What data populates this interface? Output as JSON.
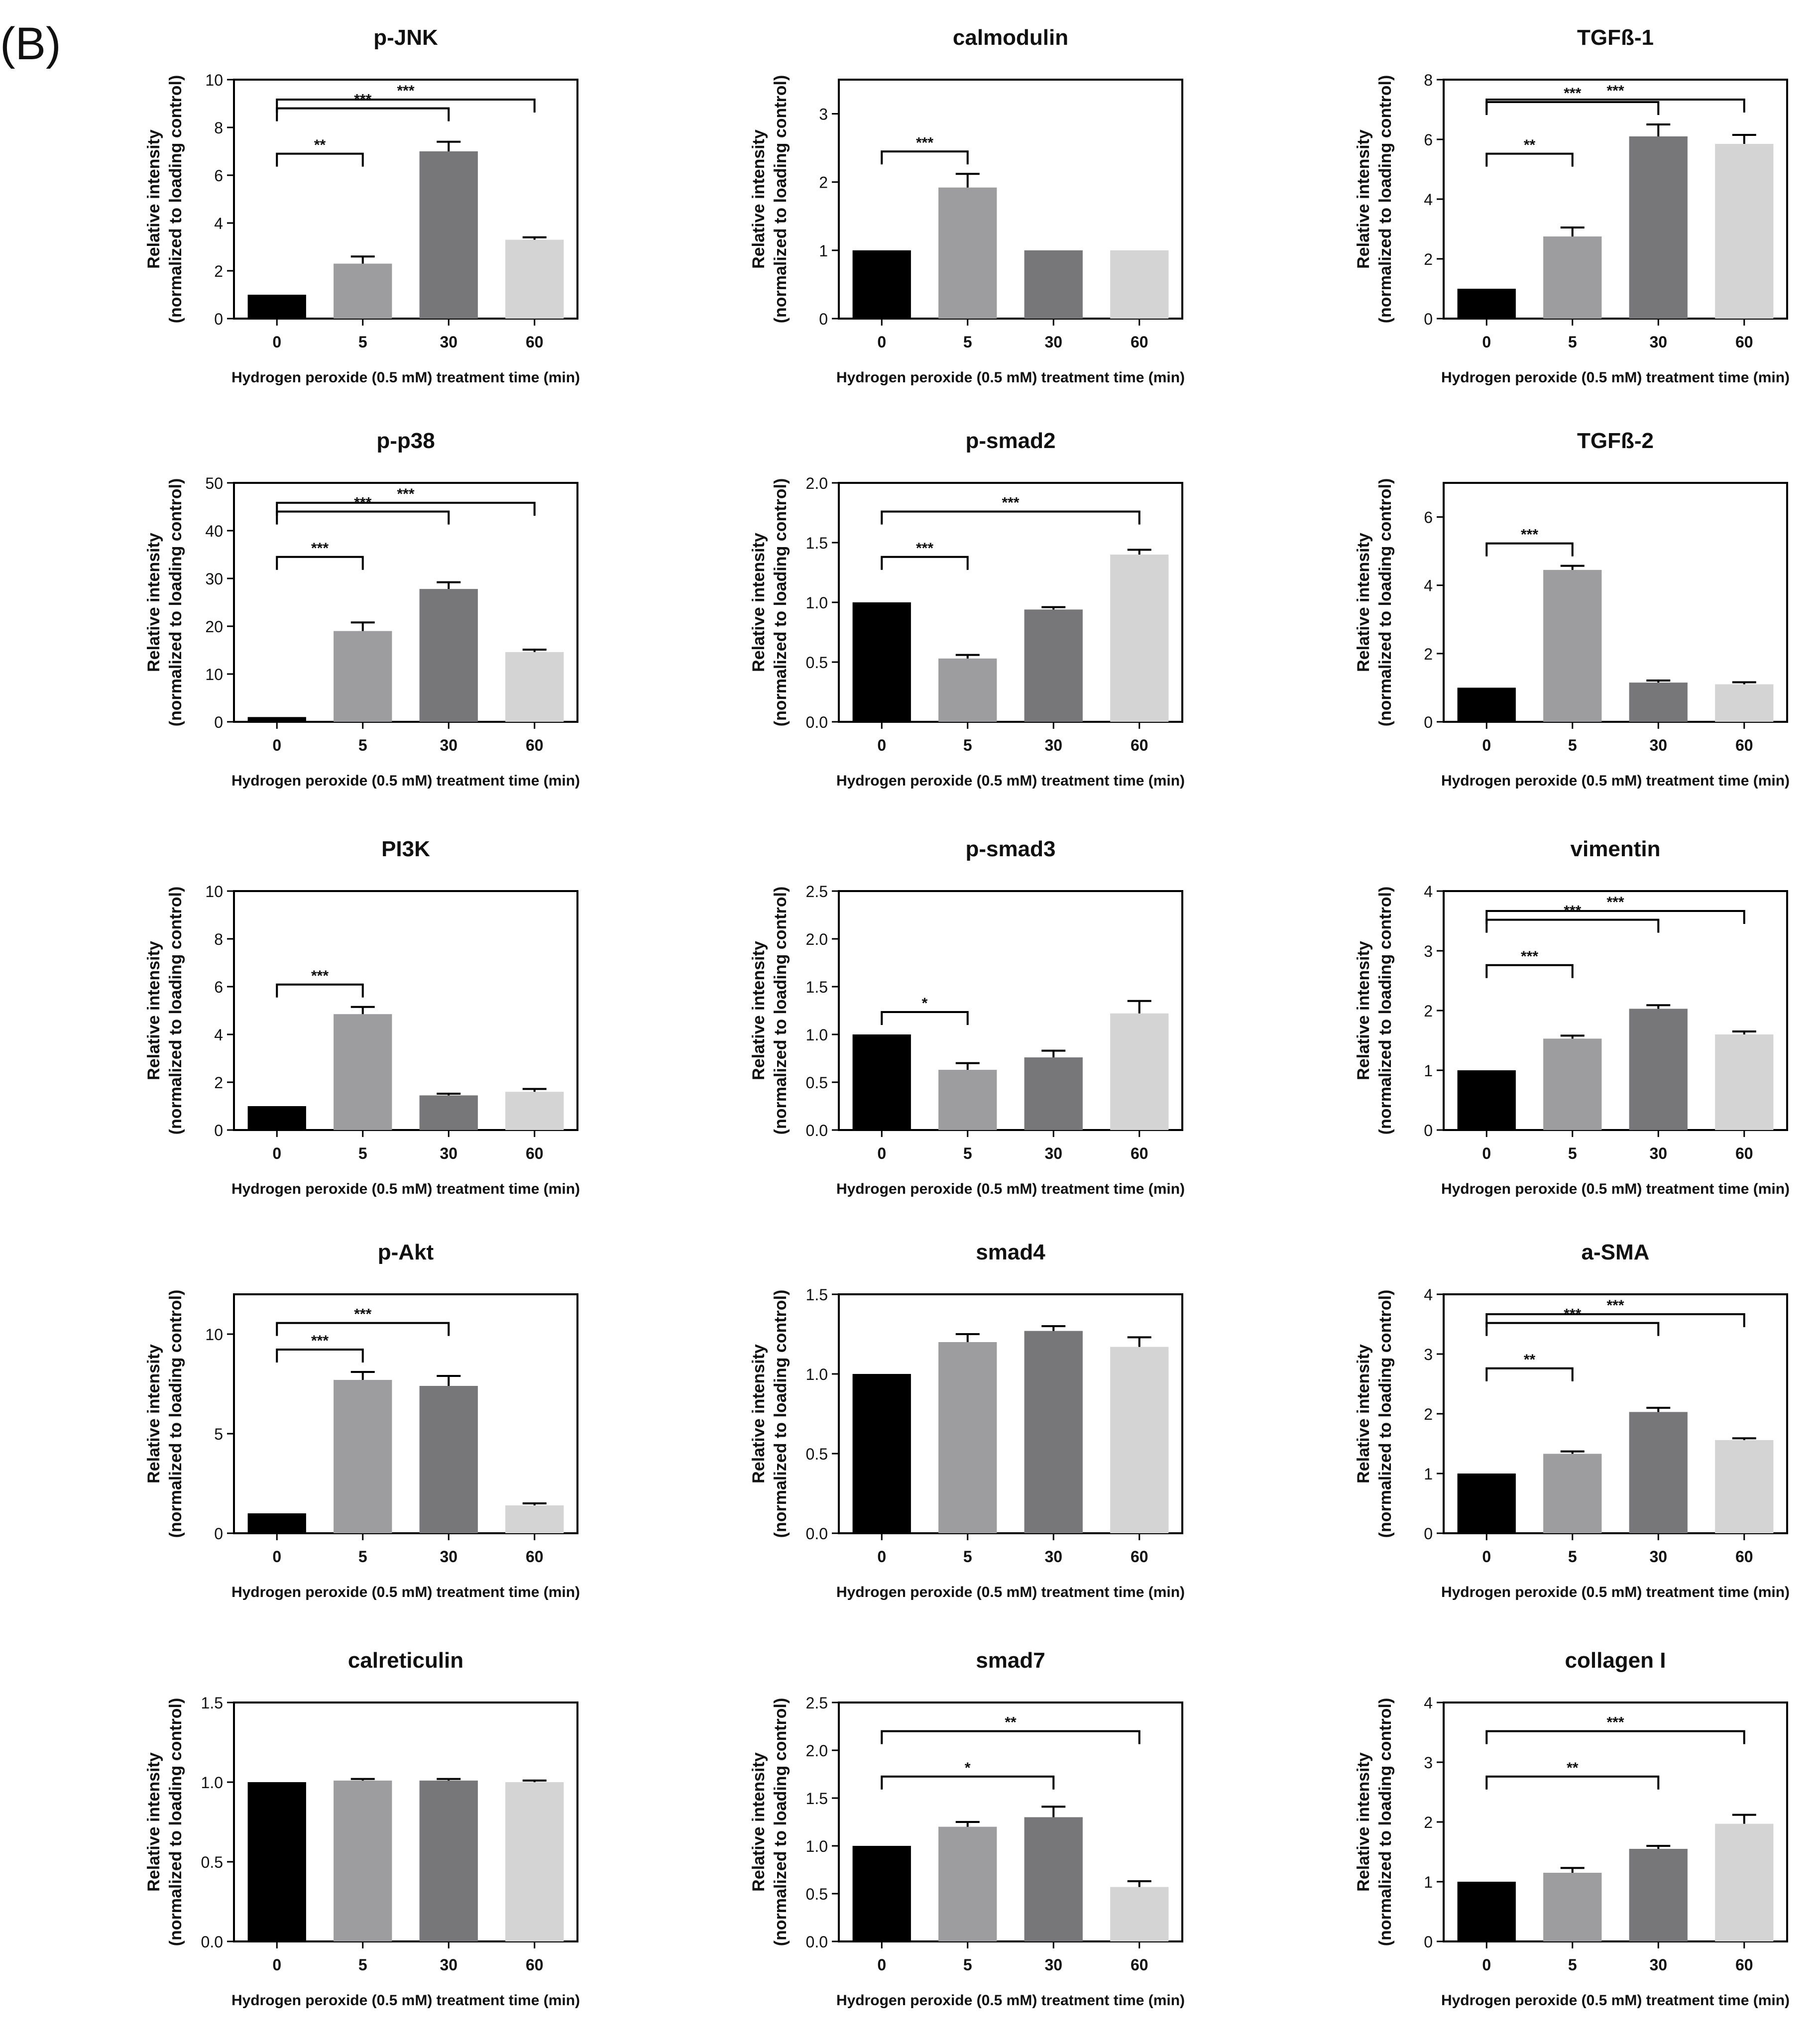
{
  "figure": {
    "panel_label": "(B)",
    "x_axis_label": "Hydrogen peroxide (0.5 mM) treatment time (min)",
    "y_axis_label_line1": "Relative intensity",
    "y_axis_label_line2": "(normalized to loading control)",
    "bar_colors": [
      "#000000",
      "#9d9d9f",
      "#77777a",
      "#d4d4d5"
    ]
  },
  "chart_data": [
    {
      "type": "bar",
      "title": "p-JNK",
      "categories": [
        "0",
        "5",
        "30",
        "60"
      ],
      "values": [
        1.0,
        2.3,
        7.0,
        3.3
      ],
      "errors": [
        0,
        0.3,
        0.4,
        0.1
      ],
      "ylim": [
        0,
        10
      ],
      "yticks": [
        "0",
        "2",
        "4",
        "6",
        "8",
        "10"
      ],
      "significance": [
        {
          "from": 0,
          "to": 1,
          "label": "**"
        },
        {
          "from": 0,
          "to": 2,
          "label": "***"
        },
        {
          "from": 0,
          "to": 3,
          "label": "***"
        }
      ]
    },
    {
      "type": "bar",
      "title": "calmodulin",
      "categories": [
        "0",
        "5",
        "30",
        "60"
      ],
      "values": [
        1.0,
        1.92,
        1.0,
        1.0
      ],
      "errors": [
        0,
        0.2,
        0,
        0
      ],
      "ylim": [
        0,
        3.5
      ],
      "yticks": [
        "0",
        "1",
        "2",
        "3"
      ],
      "significance": [
        {
          "from": 0,
          "to": 1,
          "label": "***"
        }
      ]
    },
    {
      "type": "bar",
      "title": "TGFß-1",
      "categories": [
        "0",
        "5",
        "30",
        "60"
      ],
      "values": [
        1.0,
        2.75,
        6.1,
        5.85
      ],
      "errors": [
        0,
        0.3,
        0.4,
        0.3
      ],
      "ylim": [
        0,
        8
      ],
      "yticks": [
        "0",
        "2",
        "4",
        "6",
        "8"
      ],
      "significance": [
        {
          "from": 0,
          "to": 1,
          "label": "**"
        },
        {
          "from": 0,
          "to": 2,
          "label": "***"
        },
        {
          "from": 0,
          "to": 3,
          "label": "***"
        }
      ]
    },
    {
      "type": "bar",
      "title": "p-p38",
      "categories": [
        "0",
        "5",
        "30",
        "60"
      ],
      "values": [
        1.0,
        19.0,
        27.8,
        14.6
      ],
      "errors": [
        0,
        1.8,
        1.4,
        0.5
      ],
      "ylim": [
        0,
        50
      ],
      "yticks": [
        "0",
        "10",
        "20",
        "30",
        "40",
        "50"
      ],
      "significance": [
        {
          "from": 0,
          "to": 1,
          "label": "***"
        },
        {
          "from": 0,
          "to": 2,
          "label": "***"
        },
        {
          "from": 0,
          "to": 3,
          "label": "***"
        }
      ]
    },
    {
      "type": "bar",
      "title": "p-smad2",
      "categories": [
        "0",
        "5",
        "30",
        "60"
      ],
      "values": [
        1.0,
        0.53,
        0.94,
        1.4
      ],
      "errors": [
        0,
        0.03,
        0.02,
        0.04
      ],
      "ylim": [
        0,
        2.0
      ],
      "yticks": [
        "0.0",
        "0.5",
        "1.0",
        "1.5",
        "2.0"
      ],
      "significance": [
        {
          "from": 0,
          "to": 1,
          "label": "***"
        },
        {
          "from": 0,
          "to": 3,
          "label": "***"
        }
      ]
    },
    {
      "type": "bar",
      "title": "TGFß-2",
      "categories": [
        "0",
        "5",
        "30",
        "60"
      ],
      "values": [
        1.0,
        4.45,
        1.15,
        1.1
      ],
      "errors": [
        0,
        0.12,
        0.06,
        0.06
      ],
      "ylim": [
        0,
        7
      ],
      "yticks": [
        "0",
        "2",
        "4",
        "6"
      ],
      "significance": [
        {
          "from": 0,
          "to": 1,
          "label": "***"
        }
      ]
    },
    {
      "type": "bar",
      "title": "PI3K",
      "categories": [
        "0",
        "5",
        "30",
        "60"
      ],
      "values": [
        1.0,
        4.85,
        1.45,
        1.6
      ],
      "errors": [
        0,
        0.3,
        0.07,
        0.12
      ],
      "ylim": [
        0,
        10
      ],
      "yticks": [
        "0",
        "2",
        "4",
        "6",
        "8",
        "10"
      ],
      "significance": [
        {
          "from": 0,
          "to": 1,
          "label": "***"
        }
      ]
    },
    {
      "type": "bar",
      "title": "p-smad3",
      "categories": [
        "0",
        "5",
        "30",
        "60"
      ],
      "values": [
        1.0,
        0.63,
        0.76,
        1.22
      ],
      "errors": [
        0,
        0.07,
        0.07,
        0.13
      ],
      "ylim": [
        0,
        2.5
      ],
      "yticks": [
        "0.0",
        "0.5",
        "1.0",
        "1.5",
        "2.0",
        "2.5"
      ],
      "significance": [
        {
          "from": 0,
          "to": 1,
          "label": "*"
        }
      ]
    },
    {
      "type": "bar",
      "title": "vimentin",
      "categories": [
        "0",
        "5",
        "30",
        "60"
      ],
      "values": [
        1.0,
        1.53,
        2.03,
        1.6
      ],
      "errors": [
        0,
        0.05,
        0.06,
        0.05
      ],
      "ylim": [
        0,
        4
      ],
      "yticks": [
        "0",
        "1",
        "2",
        "3",
        "4"
      ],
      "significance": [
        {
          "from": 0,
          "to": 1,
          "label": "***"
        },
        {
          "from": 0,
          "to": 2,
          "label": "***"
        },
        {
          "from": 0,
          "to": 3,
          "label": "***"
        }
      ]
    },
    {
      "type": "bar",
      "title": "p-Akt",
      "categories": [
        "0",
        "5",
        "30",
        "60"
      ],
      "values": [
        1.0,
        7.7,
        7.4,
        1.4
      ],
      "errors": [
        0,
        0.4,
        0.5,
        0.1
      ],
      "ylim": [
        0,
        12
      ],
      "yticks": [
        "0",
        "5",
        "10"
      ],
      "yticks_at": [
        0,
        5,
        10
      ],
      "significance": [
        {
          "from": 0,
          "to": 1,
          "label": "***"
        },
        {
          "from": 0,
          "to": 2,
          "label": "***"
        }
      ]
    },
    {
      "type": "bar",
      "title": "smad4",
      "categories": [
        "0",
        "5",
        "30",
        "60"
      ],
      "values": [
        1.0,
        1.2,
        1.27,
        1.17
      ],
      "errors": [
        0,
        0.05,
        0.03,
        0.06
      ],
      "ylim": [
        0,
        1.5
      ],
      "yticks": [
        "0.0",
        "0.5",
        "1.0",
        "1.5"
      ],
      "significance": []
    },
    {
      "type": "bar",
      "title": "a-SMA",
      "categories": [
        "0",
        "5",
        "30",
        "60"
      ],
      "values": [
        1.0,
        1.33,
        2.03,
        1.56
      ],
      "errors": [
        0,
        0.04,
        0.07,
        0.03
      ],
      "ylim": [
        0,
        4
      ],
      "yticks": [
        "0",
        "1",
        "2",
        "3",
        "4"
      ],
      "significance": [
        {
          "from": 0,
          "to": 1,
          "label": "**"
        },
        {
          "from": 0,
          "to": 2,
          "label": "***"
        },
        {
          "from": 0,
          "to": 3,
          "label": "***"
        }
      ]
    },
    {
      "type": "bar",
      "title": "calreticulin",
      "categories": [
        "0",
        "5",
        "30",
        "60"
      ],
      "values": [
        1.0,
        1.01,
        1.01,
        1.0
      ],
      "errors": [
        0,
        0.01,
        0.01,
        0.01
      ],
      "ylim": [
        0,
        1.5
      ],
      "yticks": [
        "0.0",
        "0.5",
        "1.0",
        "1.5"
      ],
      "significance": []
    },
    {
      "type": "bar",
      "title": "smad7",
      "categories": [
        "0",
        "5",
        "30",
        "60"
      ],
      "values": [
        1.0,
        1.2,
        1.3,
        0.57
      ],
      "errors": [
        0,
        0.05,
        0.11,
        0.06
      ],
      "ylim": [
        0,
        2.5
      ],
      "yticks": [
        "0.0",
        "0.5",
        "1.0",
        "1.5",
        "2.0",
        "2.5"
      ],
      "significance": [
        {
          "from": 0,
          "to": 2,
          "label": "*"
        },
        {
          "from": 0,
          "to": 3,
          "label": "**"
        }
      ]
    },
    {
      "type": "bar",
      "title": "collagen I",
      "categories": [
        "0",
        "5",
        "30",
        "60"
      ],
      "values": [
        1.0,
        1.15,
        1.55,
        1.97
      ],
      "errors": [
        0,
        0.08,
        0.05,
        0.15
      ],
      "ylim": [
        0,
        4
      ],
      "yticks": [
        "0",
        "1",
        "2",
        "3",
        "4"
      ],
      "significance": [
        {
          "from": 0,
          "to": 2,
          "label": "**"
        },
        {
          "from": 0,
          "to": 3,
          "label": "***"
        }
      ]
    }
  ]
}
